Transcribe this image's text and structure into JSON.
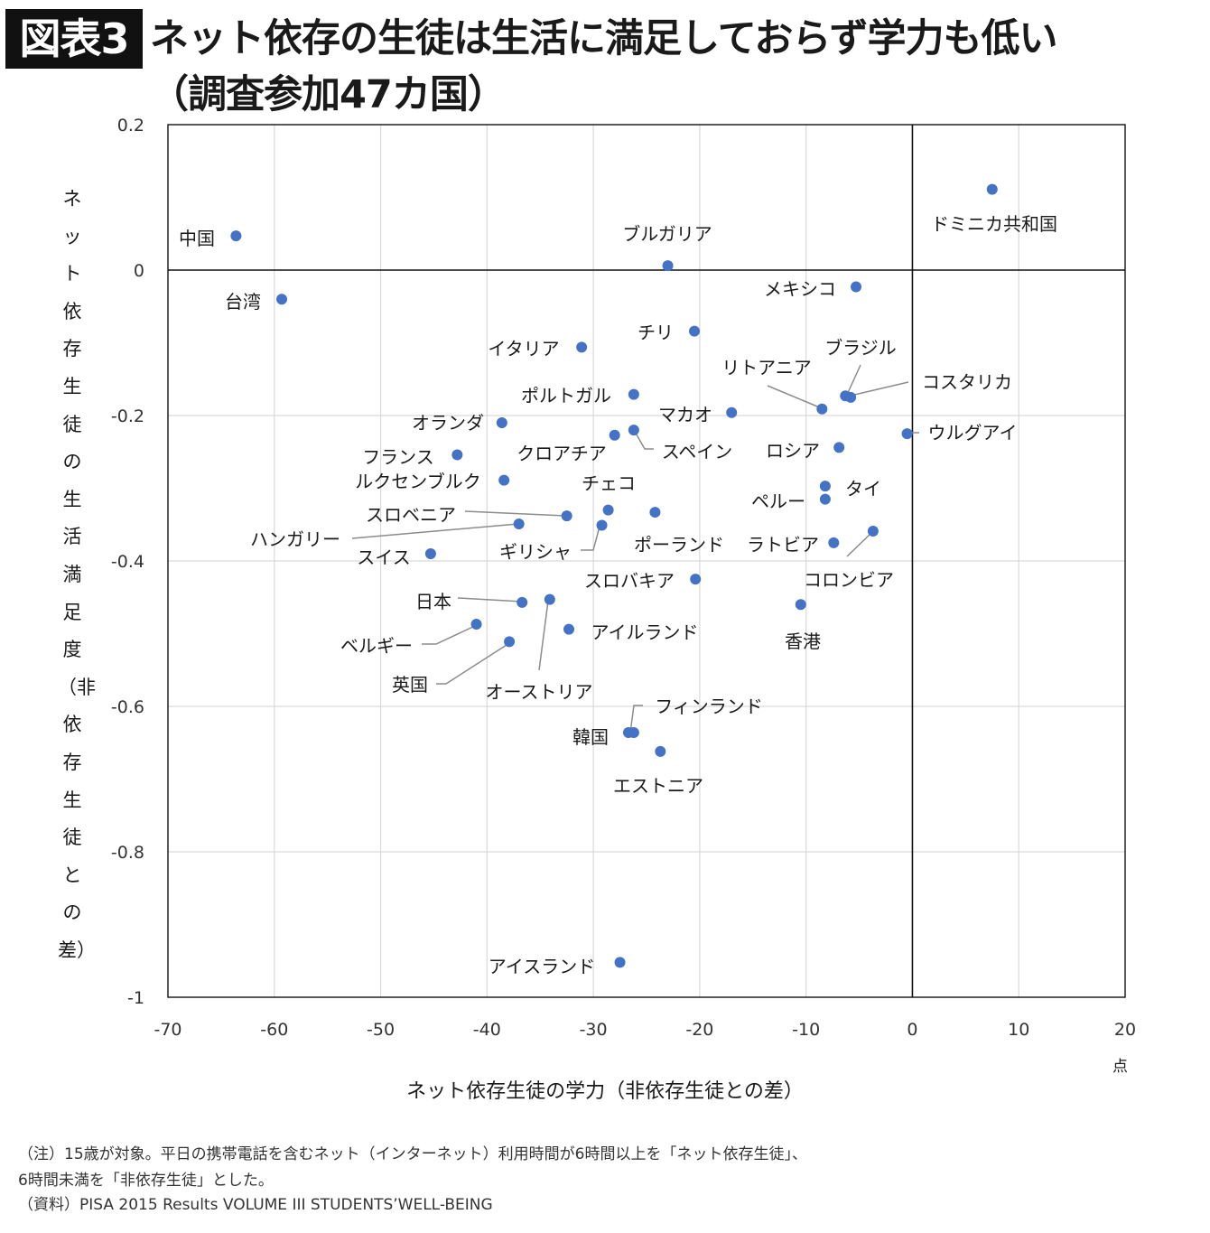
{
  "header": {
    "badge": "図表3",
    "title_line1": "ネット依存の生徒は生活に満足しておらず学力も低い",
    "title_line2": "（調査参加47カ国）"
  },
  "chart_data": {
    "type": "scatter",
    "xlabel": "ネット依存生徒の学力（非依存生徒との差）",
    "x_unit": "点",
    "ylabel": "ネット依存生徒の生活満足度（非依存生徒との差）",
    "xlim": [
      -70,
      20
    ],
    "ylim": [
      -1,
      0.2
    ],
    "x_ticks": [
      "-70",
      "-60",
      "-50",
      "-40",
      "-30",
      "-20",
      "-10",
      "0",
      "10",
      "20"
    ],
    "y_ticks": [
      "0.2",
      "0",
      "-0.2",
      "-0.4",
      "-0.6",
      "-0.8",
      "-1"
    ],
    "grid": true,
    "marker_color": "#4472c4",
    "points": [
      {
        "label": "中国",
        "x": -63.6,
        "y": 0.047
      },
      {
        "label": "台湾",
        "x": -59.3,
        "y": -0.04
      },
      {
        "label": "ブルガリア",
        "x": -23.0,
        "y": 0.006
      },
      {
        "label": "ドミニカ共和国",
        "x": 7.5,
        "y": 0.111
      },
      {
        "label": "メキシコ",
        "x": -5.3,
        "y": -0.023
      },
      {
        "label": "チリ",
        "x": -20.5,
        "y": -0.084
      },
      {
        "label": "イタリア",
        "x": -31.1,
        "y": -0.106
      },
      {
        "label": "ポルトガル",
        "x": -26.2,
        "y": -0.171
      },
      {
        "label": "リトアニア",
        "x": -8.5,
        "y": -0.191
      },
      {
        "label": "ブラジル",
        "x": -6.3,
        "y": -0.173
      },
      {
        "label": "コスタリカ",
        "x": -5.8,
        "y": -0.175
      },
      {
        "label": "マカオ",
        "x": -17.0,
        "y": -0.196
      },
      {
        "label": "オランダ",
        "x": -38.6,
        "y": -0.21
      },
      {
        "label": "ウルグアイ",
        "x": -0.5,
        "y": -0.225
      },
      {
        "label": "スペイン",
        "x": -26.2,
        "y": -0.22
      },
      {
        "label": "クロアチア",
        "x": -28.0,
        "y": -0.227
      },
      {
        "label": "ロシア",
        "x": -6.9,
        "y": -0.244
      },
      {
        "label": "フランス",
        "x": -42.8,
        "y": -0.254
      },
      {
        "label": "ルクセンブルク",
        "x": -38.4,
        "y": -0.289
      },
      {
        "label": "タイ",
        "x": -8.2,
        "y": -0.297
      },
      {
        "label": "ペルー",
        "x": -8.2,
        "y": -0.315
      },
      {
        "label": "チェコ",
        "x": -28.6,
        "y": -0.33
      },
      {
        "label": "スロベニア",
        "x": -32.5,
        "y": -0.338
      },
      {
        "label": "ポーランド",
        "x": -24.2,
        "y": -0.333
      },
      {
        "label": "ハンガリー",
        "x": -37.0,
        "y": -0.349
      },
      {
        "label": "ギリシャ",
        "x": -29.2,
        "y": -0.351
      },
      {
        "label": "コロンビア",
        "x": -3.7,
        "y": -0.359
      },
      {
        "label": "ラトビア",
        "x": -7.4,
        "y": -0.375
      },
      {
        "label": "スイス",
        "x": -45.3,
        "y": -0.39
      },
      {
        "label": "スロバキア",
        "x": -20.4,
        "y": -0.425
      },
      {
        "label": "日本",
        "x": -36.7,
        "y": -0.457
      },
      {
        "label": "オーストリア",
        "x": -34.1,
        "y": -0.453
      },
      {
        "label": "香港",
        "x": -10.5,
        "y": -0.46
      },
      {
        "label": "ベルギー",
        "x": -41.0,
        "y": -0.487
      },
      {
        "label": "アイルランド",
        "x": -32.3,
        "y": -0.494
      },
      {
        "label": "英国",
        "x": -37.9,
        "y": -0.511
      },
      {
        "label": "韓国",
        "x": -26.7,
        "y": -0.636
      },
      {
        "label": "フィンランド",
        "x": -26.2,
        "y": -0.636
      },
      {
        "label": "エストニア",
        "x": -23.7,
        "y": -0.662
      },
      {
        "label": "アイスランド",
        "x": -27.5,
        "y": -0.952
      }
    ]
  },
  "notes": {
    "line1": "（注）15歳が対象。平日の携帯電話を含むネット（インターネット）利用時間が6時間以上を「ネット依存生徒」、",
    "line2": "6時間未満を「非依存生徒」とした。",
    "line3": "（資料）PISA 2015 Results VOLUME III STUDENTS’WELL-BEING"
  }
}
